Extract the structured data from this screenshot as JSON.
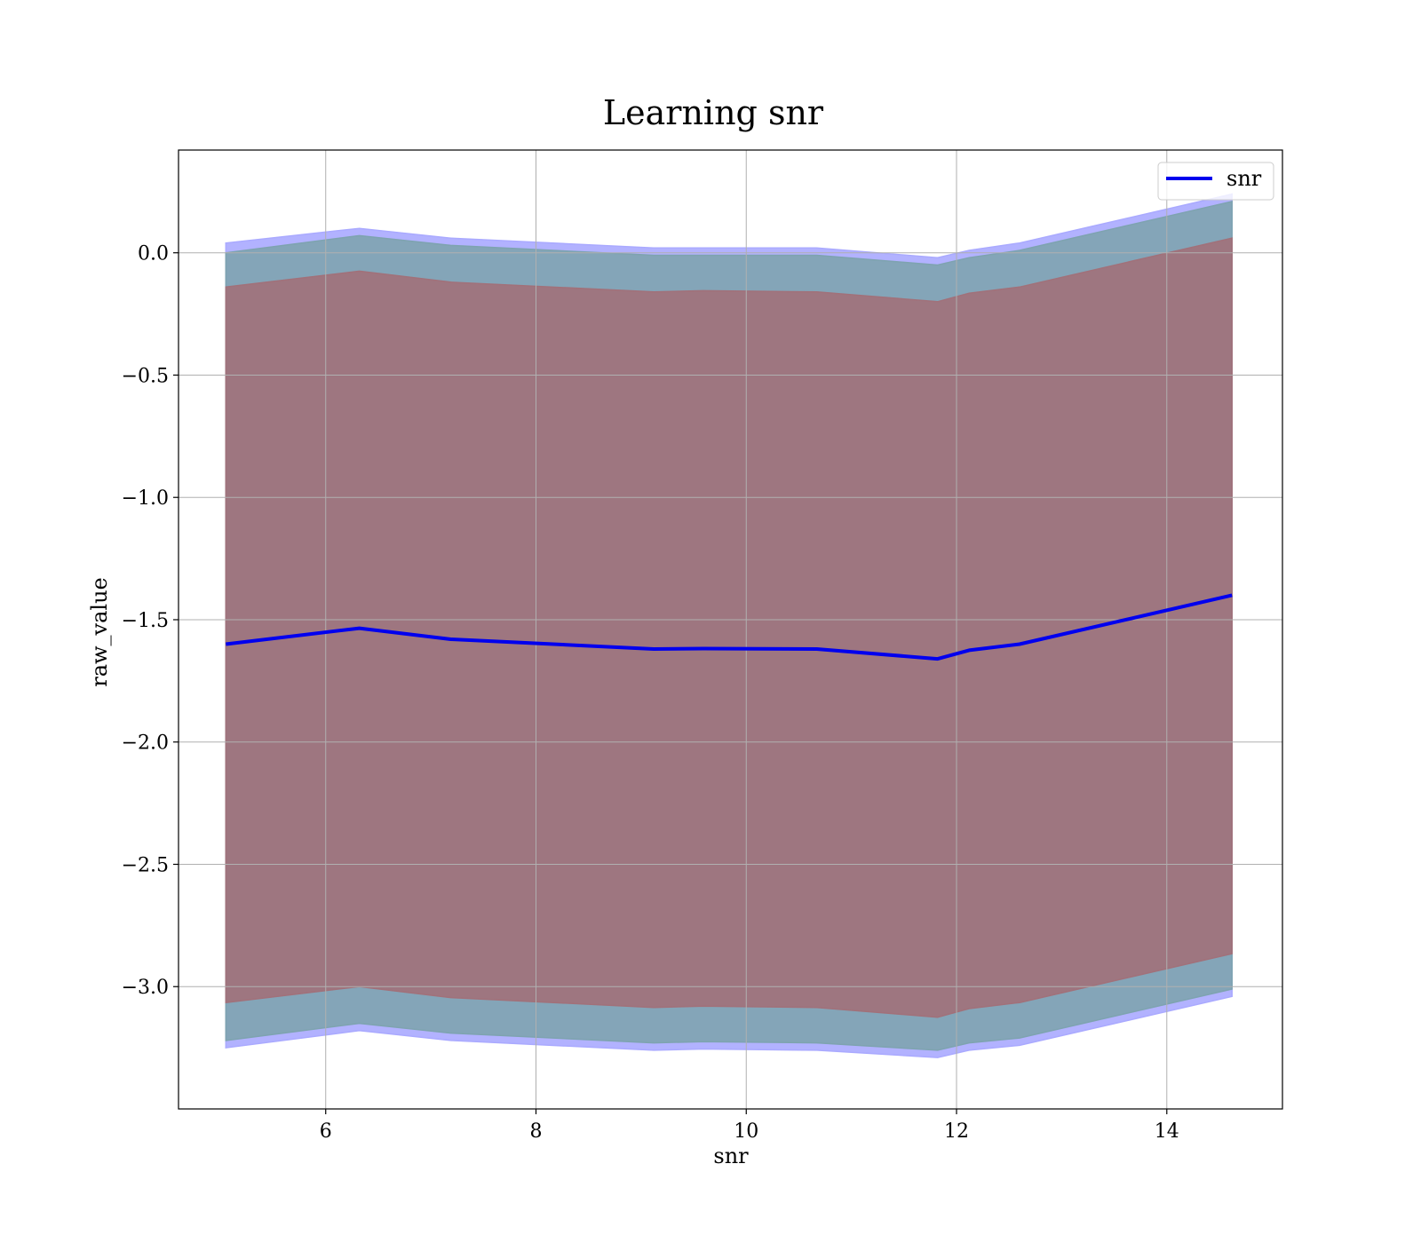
{
  "chart_data": {
    "type": "line",
    "title": "Learning snr",
    "xlabel": "snr",
    "ylabel": "raw_value",
    "xlim": [
      4.6,
      15.1
    ],
    "ylim": [
      -3.5,
      0.42
    ],
    "grid": true,
    "legend_placement": "top-right",
    "x_ticks": [
      6,
      8,
      10,
      12,
      14
    ],
    "x_tick_labels": [
      "6",
      "8",
      "10",
      "12",
      "14"
    ],
    "y_ticks": [
      0.0,
      -0.5,
      -1.0,
      -1.5,
      -2.0,
      -2.5,
      -3.0
    ],
    "y_tick_labels": [
      "0.0",
      "−0.5",
      "−1.0",
      "−1.5",
      "−2.0",
      "−2.5",
      "−3.0"
    ],
    "x": [
      5.05,
      6.32,
      7.19,
      9.12,
      9.59,
      10.67,
      11.82,
      12.12,
      12.6,
      14.62
    ],
    "series": [
      {
        "name": "snr",
        "color": "#0000ee",
        "values": [
          -1.6,
          -1.535,
          -1.58,
          -1.62,
          -1.618,
          -1.62,
          -1.66,
          -1.625,
          -1.6,
          -1.4
        ]
      }
    ],
    "bands": [
      {
        "color": "#aaaaff",
        "upper": [
          0.04,
          0.1,
          0.06,
          0.02,
          0.02,
          0.02,
          -0.02,
          0.01,
          0.04,
          0.24
        ],
        "lower": [
          -3.25,
          -3.18,
          -3.22,
          -3.26,
          -3.255,
          -3.26,
          -3.29,
          -3.26,
          -3.24,
          -3.04
        ]
      },
      {
        "color": "#7ea3b0",
        "upper": [
          0.0,
          0.07,
          0.03,
          -0.01,
          -0.01,
          -0.01,
          -0.05,
          -0.02,
          0.01,
          0.21
        ],
        "lower": [
          -3.22,
          -3.15,
          -3.19,
          -3.23,
          -3.225,
          -3.23,
          -3.26,
          -3.23,
          -3.21,
          -3.01
        ]
      },
      {
        "color": "#a1717a",
        "upper": [
          -0.14,
          -0.075,
          -0.12,
          -0.16,
          -0.155,
          -0.16,
          -0.2,
          -0.165,
          -0.14,
          0.06
        ],
        "lower": [
          -3.065,
          -3.0,
          -3.045,
          -3.085,
          -3.08,
          -3.085,
          -3.125,
          -3.09,
          -3.065,
          -2.865
        ]
      }
    ]
  }
}
